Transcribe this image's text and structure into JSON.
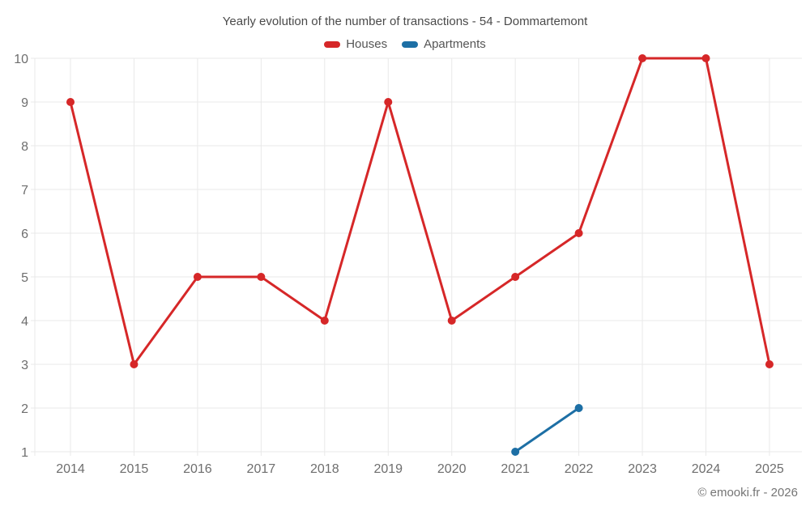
{
  "title": "Yearly evolution of the number of transactions - 54 - Dommartemont",
  "copyright": "© emooki.fr - 2026",
  "legend": {
    "items": [
      {
        "label": "Houses",
        "color": "#d62728"
      },
      {
        "label": "Apartments",
        "color": "#1d6fa5"
      }
    ]
  },
  "chart_data": {
    "type": "line",
    "title": "Yearly evolution of the number of transactions - 54 - Dommartemont",
    "categories": [
      "2014",
      "2015",
      "2016",
      "2017",
      "2018",
      "2019",
      "2020",
      "2021",
      "2022",
      "2023",
      "2024",
      "2025"
    ],
    "series": [
      {
        "name": "Houses",
        "color": "#d62728",
        "values": [
          9,
          3,
          5,
          5,
          4,
          9,
          4,
          5,
          6,
          10,
          10,
          3
        ]
      },
      {
        "name": "Apartments",
        "color": "#1d6fa5",
        "values": [
          null,
          null,
          null,
          null,
          null,
          null,
          null,
          1,
          2,
          null,
          null,
          null
        ]
      }
    ],
    "xlabel": "",
    "ylabel": "",
    "ylim": [
      1,
      10
    ],
    "yticks": [
      1,
      2,
      3,
      4,
      5,
      6,
      7,
      8,
      9,
      10
    ],
    "grid": true,
    "grid_color": "#e9e9e9",
    "legend_position": "top",
    "marker": "circle"
  }
}
